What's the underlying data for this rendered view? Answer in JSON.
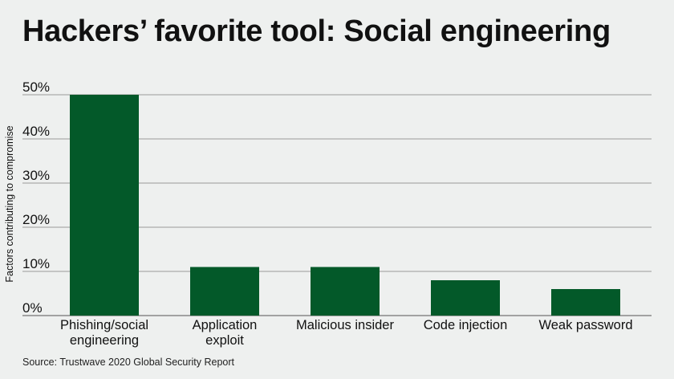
{
  "title": "Hackers’ favorite tool: Social engineering",
  "source": "Source: Trustwave 2020 Global Security Report",
  "chart_data": {
    "type": "bar",
    "title": "Hackers’ favorite tool: Social engineering",
    "xlabel": "",
    "ylabel": "Factors contributing to compromise",
    "categories": [
      [
        "Phishing/social",
        "engineering"
      ],
      [
        "Application",
        "exploit"
      ],
      [
        "Malicious insider"
      ],
      [
        "Code injection"
      ],
      [
        "Weak password"
      ]
    ],
    "values": [
      50,
      11,
      11,
      8,
      6
    ],
    "ylim": [
      0,
      50
    ],
    "yticks": [
      0,
      10,
      20,
      30,
      40,
      50
    ],
    "ytick_labels": [
      "0%",
      "10%",
      "20%",
      "30%",
      "40%",
      "50%"
    ],
    "grid": true,
    "legend": "none",
    "colors": {
      "bar": "#035929",
      "grid": "#9a9a9a",
      "axis": "#555555"
    }
  }
}
